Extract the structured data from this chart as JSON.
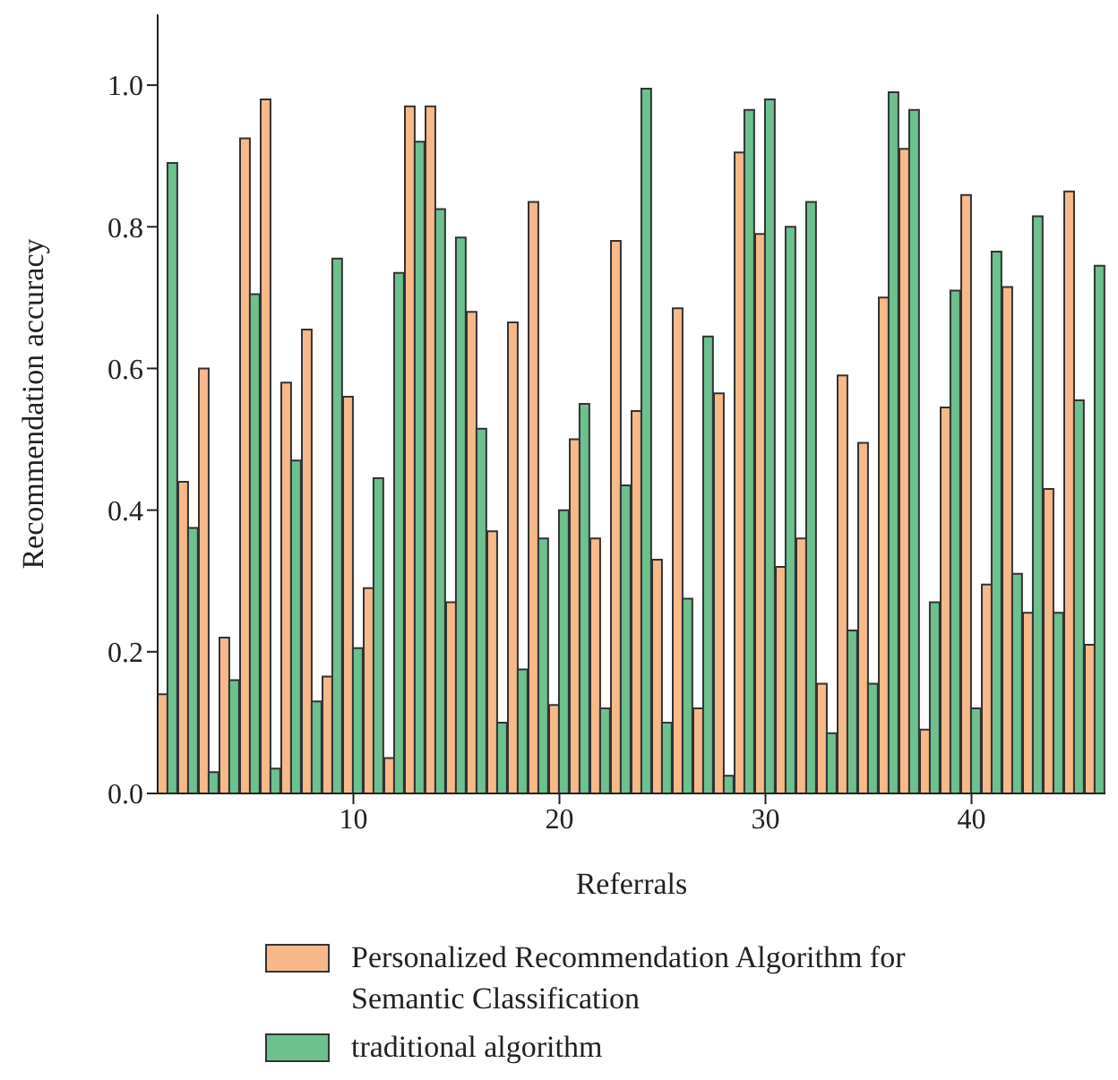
{
  "chart_data": {
    "type": "bar",
    "xlabel": "Referrals",
    "ylabel": "Recommendation accuracy",
    "x": [
      1,
      2,
      3,
      4,
      5,
      6,
      7,
      8,
      9,
      10,
      11,
      12,
      13,
      14,
      15,
      16,
      17,
      18,
      19,
      20,
      21,
      22,
      23,
      24,
      25,
      26,
      27,
      28,
      29,
      30,
      31,
      32,
      33,
      34,
      35,
      36,
      37,
      38,
      39,
      40,
      41,
      42,
      43,
      44,
      45,
      46
    ],
    "xlim": [
      0.5,
      46.5
    ],
    "xticks": [
      10,
      20,
      30,
      40
    ],
    "ylim": [
      0,
      1.1
    ],
    "yticks": [
      {
        "value": 0,
        "label": "0.0"
      },
      {
        "value": 0.2,
        "label": "0.2"
      },
      {
        "value": 0.4,
        "label": "0.4"
      },
      {
        "value": 0.6,
        "label": "0.6"
      },
      {
        "value": 0.8,
        "label": "0.8"
      },
      {
        "value": 1,
        "label": "1.0"
      }
    ],
    "series": [
      {
        "name": "Personalized Recommendation Algorithm for Semantic Classification",
        "color": "#f8b98a",
        "values": [
          0.14,
          0.44,
          0.6,
          0.22,
          0.925,
          0.98,
          0.58,
          0.655,
          0.165,
          0.56,
          0.29,
          0.05,
          0.97,
          0.97,
          0.27,
          0.68,
          0.37,
          0.665,
          0.835,
          0.125,
          0.5,
          0.36,
          0.78,
          0.54,
          0.33,
          0.685,
          0.12,
          0.565,
          0.905,
          0.79,
          0.32,
          0.36,
          0.155,
          0.59,
          0.495,
          0.7,
          0.91,
          0.09,
          0.545,
          0.845,
          0.295,
          0.715,
          0.255,
          0.43,
          0.85,
          0.21
        ]
      },
      {
        "name": "traditional algorithm",
        "color": "#6cc18f",
        "values": [
          0.89,
          0.375,
          0.03,
          0.16,
          0.705,
          0.035,
          0.47,
          0.13,
          0.755,
          0.205,
          0.445,
          0.735,
          0.92,
          0.825,
          0.785,
          0.515,
          0.1,
          0.175,
          0.36,
          0.4,
          0.55,
          0.12,
          0.435,
          0.995,
          0.1,
          0.275,
          0.645,
          0.025,
          0.965,
          0.98,
          0.8,
          0.835,
          0.085,
          0.23,
          0.155,
          0.99,
          0.965,
          0.27,
          0.71,
          0.12,
          0.765,
          0.31,
          0.815,
          0.255,
          0.555,
          0.745
        ]
      }
    ],
    "grid": false,
    "legend": "bottom"
  }
}
